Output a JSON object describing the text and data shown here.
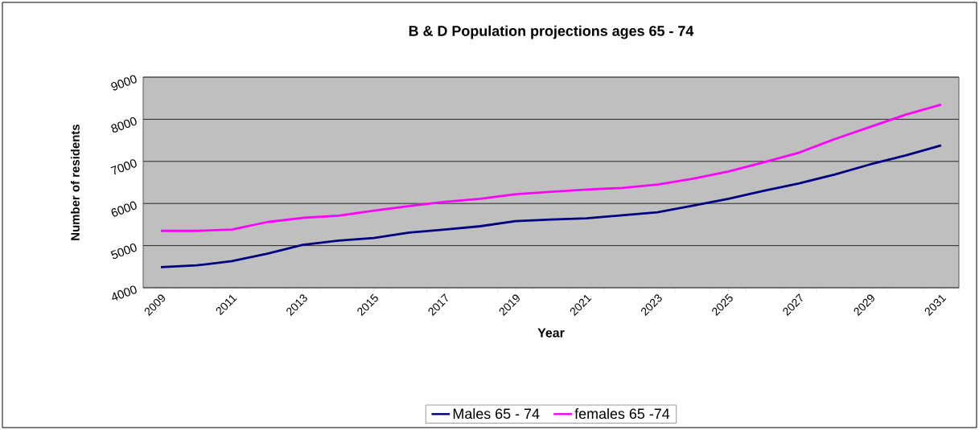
{
  "chart_data": {
    "type": "line",
    "title": "B & D Population projections ages 65 - 74",
    "xlabel": "Year",
    "ylabel": "Number of residents",
    "categories": [
      "2009",
      null,
      "2011",
      null,
      "2013",
      null,
      "2015",
      null,
      "2017",
      null,
      "2019",
      null,
      "2021",
      null,
      "2023",
      null,
      "2025",
      null,
      "2027",
      null,
      "2029",
      null,
      "2031"
    ],
    "series": [
      {
        "name": "Males 65 - 74",
        "color": "#000080",
        "values": [
          4490,
          4530,
          4630,
          4810,
          5020,
          5120,
          5180,
          5310,
          5380,
          5460,
          5580,
          5620,
          5650,
          5720,
          5790,
          5950,
          6110,
          6300,
          6480,
          6690,
          6930,
          7140,
          7380
        ]
      },
      {
        "name": "females 65 -74",
        "color": "#ff00ff",
        "values": [
          5350,
          5350,
          5380,
          5560,
          5660,
          5710,
          5830,
          5940,
          6040,
          6110,
          6220,
          6280,
          6330,
          6370,
          6450,
          6590,
          6760,
          6980,
          7210,
          7530,
          7820,
          8110,
          8350
        ]
      }
    ],
    "ylim": [
      4000,
      9000
    ],
    "yticks": [
      4000,
      5000,
      6000,
      7000,
      8000,
      9000
    ],
    "grid": "y",
    "legend": "bottom",
    "marker": "none",
    "line_style": "solid"
  }
}
